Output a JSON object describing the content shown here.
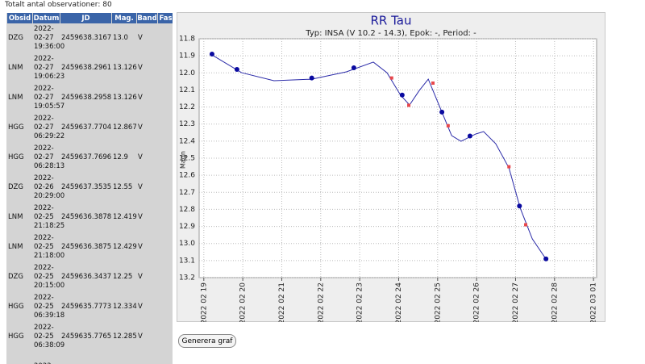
{
  "header": {
    "title": "Totalt antal observationer: 80"
  },
  "table": {
    "columns": [
      "Obsid",
      "Datum",
      "JD",
      "Mag.",
      "Band",
      "Fas"
    ],
    "rows": [
      {
        "obsid": "DZG",
        "datum": [
          "2022-",
          "02-27",
          "19:36:00"
        ],
        "jd": "2459638.3167",
        "mag": "13.0",
        "band": "V"
      },
      {
        "obsid": "LNM",
        "datum": [
          "2022-",
          "02-27",
          "19:06:23"
        ],
        "jd": "2459638.2961",
        "mag": "13.126",
        "band": "V"
      },
      {
        "obsid": "LNM",
        "datum": [
          "2022-",
          "02-27",
          "19:05:57"
        ],
        "jd": "2459638.2958",
        "mag": "13.126",
        "band": "V"
      },
      {
        "obsid": "HGG",
        "datum": [
          "2022-",
          "02-27",
          "06:29:22"
        ],
        "jd": "2459637.7704",
        "mag": "12.867",
        "band": "V"
      },
      {
        "obsid": "HGG",
        "datum": [
          "2022-",
          "02-27",
          "06:28:13"
        ],
        "jd": "2459637.7696",
        "mag": "12.9",
        "band": "V"
      },
      {
        "obsid": "DZG",
        "datum": [
          "2022-",
          "02-26",
          "20:29:00"
        ],
        "jd": "2459637.3535",
        "mag": "12.55",
        "band": "V"
      },
      {
        "obsid": "LNM",
        "datum": [
          "2022-",
          "02-25",
          "21:18:25"
        ],
        "jd": "2459636.3878",
        "mag": "12.419",
        "band": "V"
      },
      {
        "obsid": "LNM",
        "datum": [
          "2022-",
          "02-25",
          "21:18:00"
        ],
        "jd": "2459636.3875",
        "mag": "12.429",
        "band": "V"
      },
      {
        "obsid": "DZG",
        "datum": [
          "2022-",
          "02-25",
          "20:15:00"
        ],
        "jd": "2459636.3437",
        "mag": "12.25",
        "band": "V"
      },
      {
        "obsid": "HGG",
        "datum": [
          "2022-",
          "02-25",
          "06:39:18"
        ],
        "jd": "2459635.7773",
        "mag": "12.334",
        "band": "V"
      },
      {
        "obsid": "HGG",
        "datum": [
          "2022-",
          "02-25",
          "06:38:09"
        ],
        "jd": "2459635.7765",
        "mag": "12.285",
        "band": "V"
      },
      {
        "datum": [
          "2022-"
        ]
      }
    ]
  },
  "chart_data": {
    "type": "scatter",
    "title": "RR Tau",
    "subtitle": "Typ: INSA (V 10.2 - 14.3), Epok: -, Period: -",
    "y_label": "Magn",
    "y_reversed": true,
    "grid": true,
    "xlim": [
      2459629.38,
      2459639.58
    ],
    "xticks": [
      {
        "value": 2459629.5,
        "label": "2022 02 19"
      },
      {
        "value": 2459630.5,
        "label": "2022 02 20"
      },
      {
        "value": 2459631.5,
        "label": "2022 02 21"
      },
      {
        "value": 2459632.5,
        "label": "2022 02 22"
      },
      {
        "value": 2459633.5,
        "label": "2022 02 23"
      },
      {
        "value": 2459634.5,
        "label": "2022 02 24"
      },
      {
        "value": 2459635.5,
        "label": "2022 02 25"
      },
      {
        "value": 2459636.5,
        "label": "2022 02 26"
      },
      {
        "value": 2459637.5,
        "label": "2022 02 27"
      },
      {
        "value": 2459638.5,
        "label": "2022 02 28"
      },
      {
        "value": 2459639.5,
        "label": "2022 03 01"
      }
    ],
    "ylim": [
      11.8,
      13.2
    ],
    "yticks": [
      11.8,
      11.9,
      {
        "value": 12,
        "label": "12.0"
      },
      12.1,
      12.2,
      12.3,
      12.4,
      12.5,
      12.6,
      12.7,
      12.8,
      12.9,
      {
        "value": 13,
        "label": "13.0"
      },
      13.1,
      13.2
    ],
    "series": [
      {
        "mode": "line",
        "color": "#2a2aa8",
        "x": [
          2459629.71,
          2459630.47,
          2459631.3,
          2459632.27,
          2459633.16,
          2459633.85,
          2459634.2,
          2459634.55,
          2459634.78,
          2459635.03,
          2459635.26,
          2459635.61,
          2459635.86,
          2459636.1,
          2459636.48,
          2459636.68,
          2459636.99,
          2459637.33,
          2459637.62,
          2459637.93,
          2459638.28
        ],
        "values": [
          11.895,
          11.999,
          12.046,
          12.037,
          11.994,
          11.937,
          11.999,
          12.131,
          12.188,
          12.103,
          12.037,
          12.23,
          12.368,
          12.401,
          12.358,
          12.344,
          12.415,
          12.557,
          12.793,
          12.973,
          13.091
        ]
      },
      {
        "mode": "markers",
        "marker": "square",
        "color": "#e8474b",
        "x": [
          2459634.32,
          2459634.76,
          2459635.38,
          2459635.77,
          2459637.33,
          2459637.76,
          2459638.28
        ],
        "values": [
          12.03,
          12.19,
          12.06,
          12.31,
          12.55,
          12.89,
          13.09
        ]
      },
      {
        "mode": "markers",
        "marker": "circle",
        "color": "#0a0aa0",
        "x": [
          2459629.71,
          2459630.35,
          2459632.27,
          2459633.35,
          2459634.59,
          2459635.61,
          2459636.33,
          2459637.6,
          2459638.28
        ],
        "values": [
          11.89,
          11.98,
          12.03,
          11.97,
          12.13,
          12.23,
          12.37,
          12.78,
          13.09
        ]
      }
    ]
  },
  "button": {
    "label": "Generera graf"
  }
}
